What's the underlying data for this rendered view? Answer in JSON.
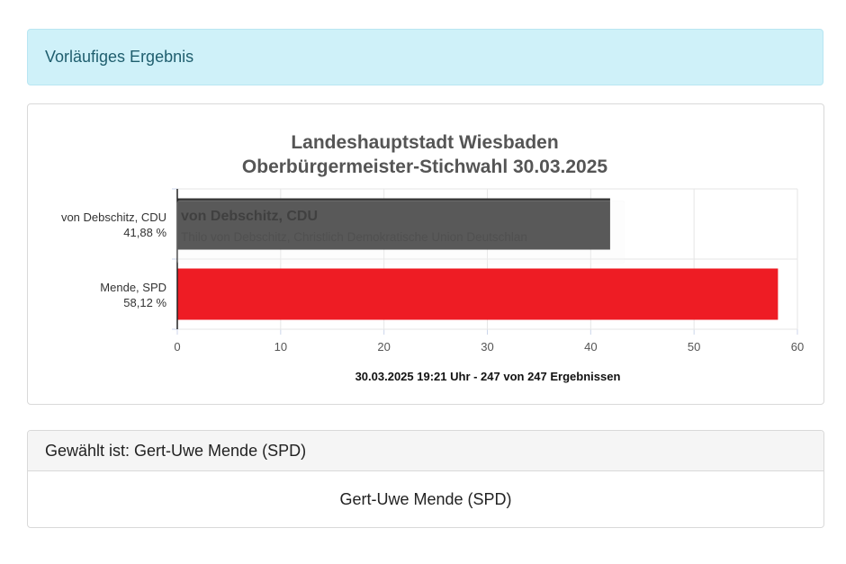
{
  "alert": {
    "text": "Vorläufiges Ergebnis"
  },
  "chart_data": {
    "type": "bar",
    "orientation": "horizontal",
    "title": [
      "Landeshauptstadt Wiesbaden",
      "Oberbürgermeister-Stichwahl 30.03.2025"
    ],
    "categories": [
      {
        "name": "von Debschitz, CDU",
        "label": "41,88 %"
      },
      {
        "name": "Mende, SPD",
        "label": "58,12 %"
      }
    ],
    "values": [
      41.88,
      58.12
    ],
    "colors": [
      "#333333",
      "#ee1c24"
    ],
    "xlim": [
      0,
      60
    ],
    "xticks": [
      0,
      10,
      20,
      30,
      40,
      50,
      60
    ],
    "grid": true,
    "footer": "30.03.2025 19:21 Uhr - 247 von 247 Ergebnissen",
    "tooltip": {
      "title": "von Debschitz, CDU",
      "text": "Thilo von Debschitz, Christlich Demokratische Union Deutschlan"
    }
  },
  "result": {
    "heading": "Gewählt ist: Gert-Uwe Mende (SPD)",
    "winner": "Gert-Uwe Mende (SPD)"
  }
}
